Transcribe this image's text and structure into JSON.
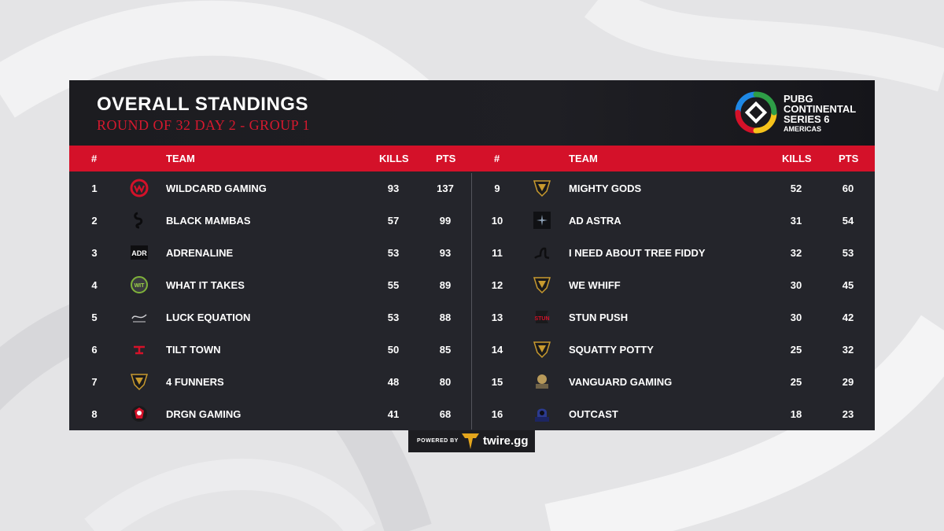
{
  "header": {
    "title": "OVERALL STANDINGS",
    "subtitle": "ROUND OF 32 DAY 2 - GROUP 1"
  },
  "brand": {
    "line1": "PUBG",
    "line2": "CONTINENTAL",
    "line3": "SERIES 6",
    "line4": "AMERICAS"
  },
  "columns": {
    "rank": "#",
    "team": "TEAM",
    "kills": "KILLS",
    "pts": "PTS"
  },
  "standings_left": [
    {
      "rank": "1",
      "team": "WILDCARD GAMING",
      "kills": "93",
      "pts": "137",
      "icon": "wildcard-logo-icon"
    },
    {
      "rank": "2",
      "team": "BLACK MAMBAS",
      "kills": "57",
      "pts": "99",
      "icon": "black-mambas-logo-icon"
    },
    {
      "rank": "3",
      "team": "ADRENALINE",
      "kills": "53",
      "pts": "93",
      "icon": "adrenaline-logo-icon"
    },
    {
      "rank": "4",
      "team": "WHAT IT TAKES",
      "kills": "55",
      "pts": "89",
      "icon": "what-it-takes-logo-icon"
    },
    {
      "rank": "5",
      "team": "LUCK EQUATION",
      "kills": "53",
      "pts": "88",
      "icon": "luck-equation-logo-icon"
    },
    {
      "rank": "6",
      "team": "TILT TOWN",
      "kills": "50",
      "pts": "85",
      "icon": "tilt-town-logo-icon"
    },
    {
      "rank": "7",
      "team": "4 FUNNERS",
      "kills": "48",
      "pts": "80",
      "icon": "default-shield-icon"
    },
    {
      "rank": "8",
      "team": "DRGN GAMING",
      "kills": "41",
      "pts": "68",
      "icon": "drgn-logo-icon"
    }
  ],
  "standings_right": [
    {
      "rank": "9",
      "team": "MIGHTY GODS",
      "kills": "52",
      "pts": "60",
      "icon": "default-shield-icon"
    },
    {
      "rank": "10",
      "team": "AD ASTRA",
      "kills": "31",
      "pts": "54",
      "icon": "ad-astra-logo-icon"
    },
    {
      "rank": "11",
      "team": "I NEED ABOUT TREE FIDDY",
      "kills": "32",
      "pts": "53",
      "icon": "tree-fiddy-logo-icon"
    },
    {
      "rank": "12",
      "team": "WE WHIFF",
      "kills": "30",
      "pts": "45",
      "icon": "default-shield-icon"
    },
    {
      "rank": "13",
      "team": "STUN PUSH",
      "kills": "30",
      "pts": "42",
      "icon": "stun-push-logo-icon"
    },
    {
      "rank": "14",
      "team": "SQUATTY POTTY",
      "kills": "25",
      "pts": "32",
      "icon": "default-shield-icon"
    },
    {
      "rank": "15",
      "team": "VANGUARD GAMING",
      "kills": "25",
      "pts": "29",
      "icon": "vanguard-logo-icon"
    },
    {
      "rank": "16",
      "team": "OUTCAST",
      "kills": "18",
      "pts": "23",
      "icon": "outcast-logo-icon"
    }
  ],
  "footer": {
    "powered_by": "POWERED BY",
    "brand": "twire.gg"
  },
  "colors": {
    "accent_red": "#d41129",
    "subtitle_red": "#d6192e",
    "panel_bg": "#24252b",
    "header_bg": "#1c1c20",
    "shield_gold": "#c89a2e"
  }
}
